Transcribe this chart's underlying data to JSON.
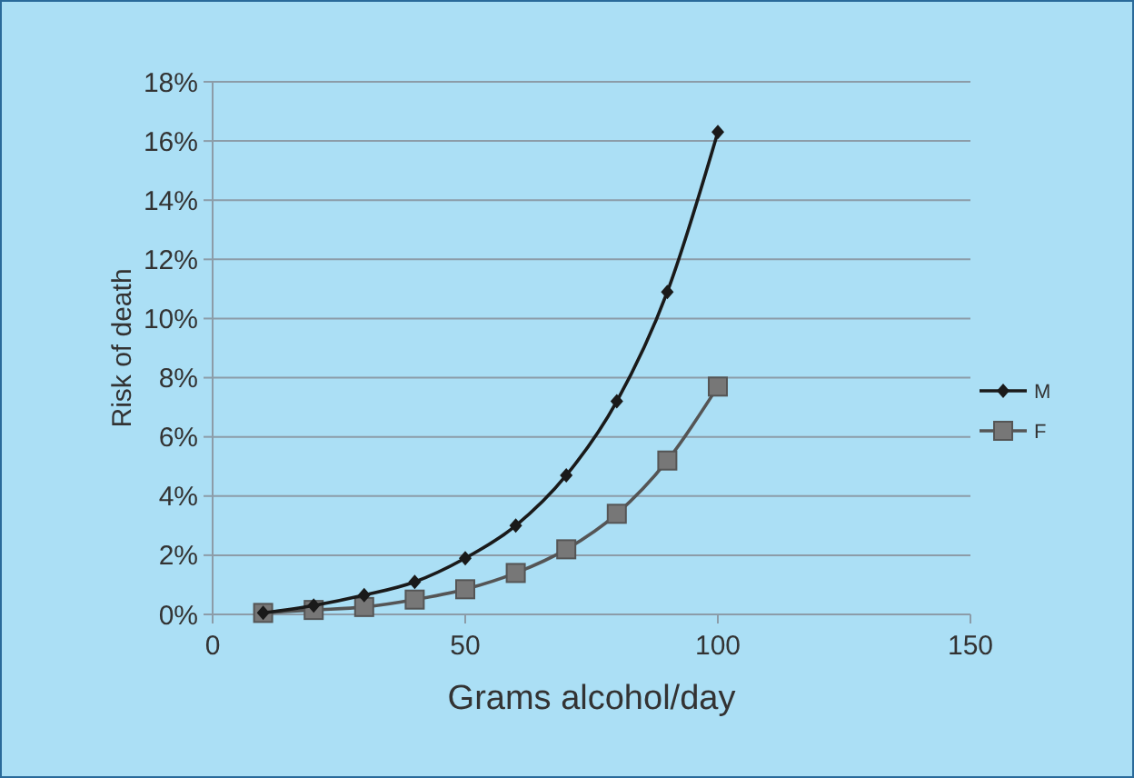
{
  "chart_data": {
    "type": "line",
    "xlabel": "Grams alcohol/day",
    "ylabel": "Risk of death",
    "x": [
      10,
      20,
      30,
      40,
      50,
      60,
      70,
      80,
      90,
      100
    ],
    "series": [
      {
        "name": "M",
        "color": "#1a1a1a",
        "marker": "diamond",
        "values": [
          0.05,
          0.3,
          0.65,
          1.1,
          1.9,
          3.0,
          4.7,
          7.2,
          10.9,
          16.3
        ]
      },
      {
        "name": "F",
        "color": "#555555",
        "marker": "square",
        "values": [
          0.05,
          0.15,
          0.25,
          0.5,
          0.85,
          1.4,
          2.2,
          3.4,
          5.2,
          7.7
        ]
      }
    ],
    "xlim": [
      0,
      150
    ],
    "xticks": [
      0,
      50,
      100,
      150
    ],
    "ylim": [
      0,
      18
    ],
    "yticks": [
      {
        "value": 0,
        "label": "0%"
      },
      {
        "value": 2,
        "label": "2%"
      },
      {
        "value": 4,
        "label": "4%"
      },
      {
        "value": 6,
        "label": "6%"
      },
      {
        "value": 8,
        "label": "8%"
      },
      {
        "value": 10,
        "label": "10%"
      },
      {
        "value": 12,
        "label": "12%"
      },
      {
        "value": 14,
        "label": "14%"
      },
      {
        "value": 16,
        "label": "16%"
      },
      {
        "value": 18,
        "label": "18%"
      }
    ],
    "grid": "y",
    "legend": "right"
  }
}
